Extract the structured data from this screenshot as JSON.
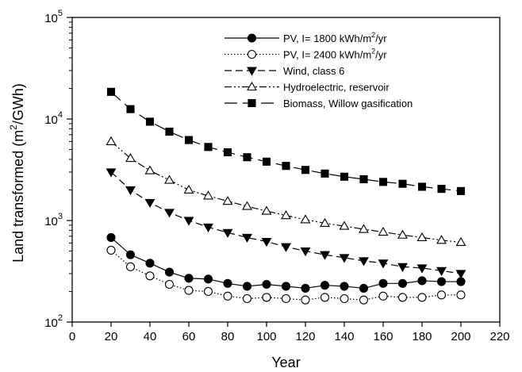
{
  "chart_data": {
    "type": "line",
    "xlabel": "Year",
    "ylabel": "Land transformed (m²/GWh)",
    "ylabel_parts": {
      "pre": "Land transformed (m",
      "sup": "2",
      "post": "/GWh)"
    },
    "x_scale": "linear",
    "y_scale": "log",
    "xlim": [
      0,
      220
    ],
    "ylim": [
      100,
      100000
    ],
    "x_ticks": [
      0,
      20,
      40,
      60,
      80,
      100,
      120,
      140,
      160,
      180,
      200,
      220
    ],
    "y_ticks": [
      {
        "value": 100,
        "base": "10",
        "exp": "2"
      },
      {
        "value": 1000,
        "base": "10",
        "exp": "3"
      },
      {
        "value": 10000,
        "base": "10",
        "exp": "4"
      },
      {
        "value": 100000,
        "base": "10",
        "exp": "5"
      }
    ],
    "grid": false,
    "legend_position": "top-right",
    "x": [
      20,
      30,
      40,
      50,
      60,
      70,
      80,
      90,
      100,
      110,
      120,
      130,
      140,
      150,
      160,
      170,
      180,
      190,
      200
    ],
    "series": [
      {
        "name": "PV, I= 1800 kWh/m2/yr",
        "name_parts": {
          "pre": "PV, I= 1800 kWh/m",
          "sup": "2",
          "post": "/yr"
        },
        "marker": "circle-filled",
        "dash": "solid",
        "values": [
          680,
          460,
          380,
          310,
          270,
          265,
          240,
          225,
          235,
          225,
          215,
          230,
          225,
          215,
          240,
          240,
          255,
          250,
          250
        ]
      },
      {
        "name": "PV, I= 2400 kWh/m2/yr",
        "name_parts": {
          "pre": "PV, I= 2400 kWh/m",
          "sup": "2",
          "post": "/yr"
        },
        "marker": "circle-open",
        "dash": "dotted",
        "values": [
          510,
          350,
          285,
          235,
          205,
          200,
          180,
          170,
          175,
          170,
          165,
          175,
          170,
          165,
          180,
          175,
          175,
          185,
          185
        ]
      },
      {
        "name": "Wind, class 6",
        "marker": "triangle-down-filled",
        "dash": "dashed",
        "values": [
          3000,
          2000,
          1500,
          1200,
          1000,
          860,
          760,
          680,
          620,
          550,
          500,
          460,
          430,
          400,
          380,
          350,
          340,
          320,
          300
        ]
      },
      {
        "name": "Hydroelectric, reservoir",
        "marker": "triangle-up-open",
        "dash": "dash-dot-dot",
        "values": [
          6000,
          4100,
          3100,
          2500,
          2000,
          1750,
          1550,
          1380,
          1240,
          1120,
          1020,
          940,
          880,
          820,
          770,
          720,
          680,
          640,
          610
        ]
      },
      {
        "name": "Biomass, Willow gasification",
        "marker": "square-filled",
        "dash": "long-dash",
        "values": [
          18500,
          12500,
          9400,
          7500,
          6200,
          5300,
          4700,
          4200,
          3800,
          3450,
          3150,
          2900,
          2700,
          2550,
          2400,
          2300,
          2150,
          2050,
          1950
        ]
      }
    ]
  }
}
